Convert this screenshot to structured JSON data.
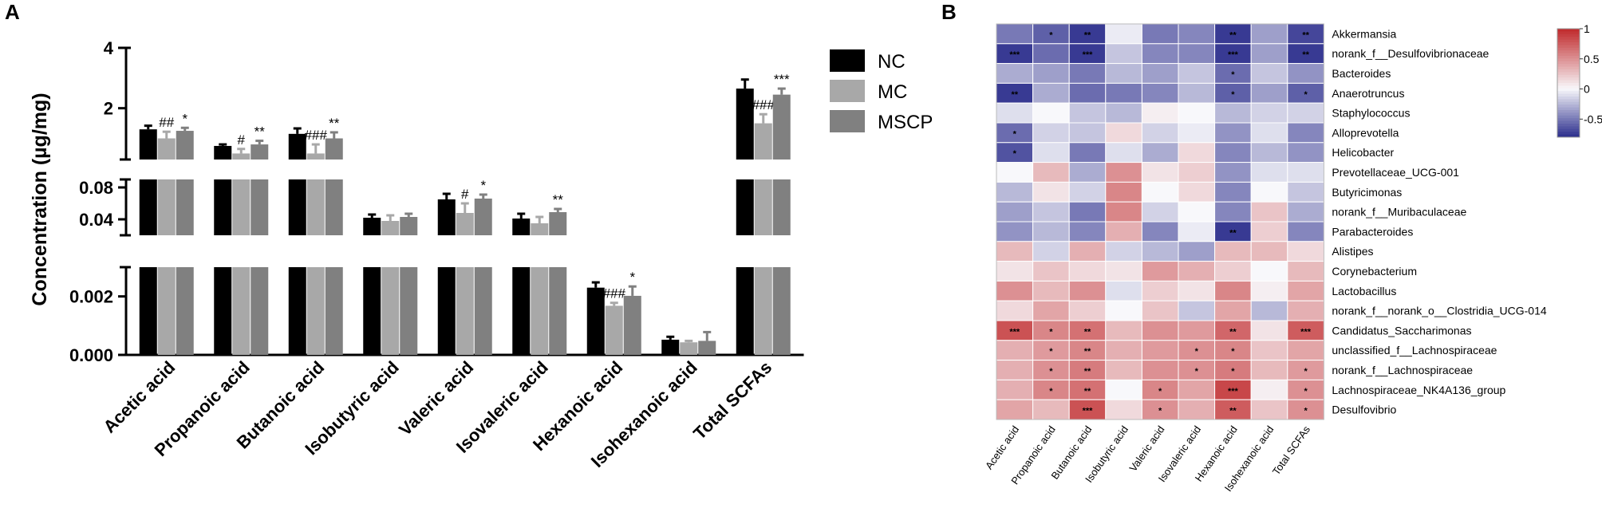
{
  "panels": {
    "a_label": "A",
    "b_label": "B"
  },
  "chart_data": [
    {
      "type": "bar",
      "panel": "A",
      "ylabel": "Concentration (µg/mg)",
      "xlabel": "",
      "broken_axis": true,
      "segments": [
        {
          "range": [
            0,
            0.003
          ],
          "ticks": [
            "0.000",
            "0.002"
          ],
          "tick_values": [
            0,
            0.002
          ]
        },
        {
          "range": [
            0.02,
            0.09
          ],
          "ticks": [
            "0.04",
            "0.08"
          ],
          "tick_values": [
            0.04,
            0.08
          ]
        },
        {
          "range": [
            0.3,
            4
          ],
          "ticks": [
            "2",
            "4"
          ],
          "tick_values": [
            2,
            4
          ]
        }
      ],
      "categories": [
        "Acetic acid",
        "Propanoic acid",
        "Butanoic acid",
        "Isobutyric acid",
        "Valeric acid",
        "Isovaleric acid",
        "Hexanoic acid",
        "Isohexanoic acid",
        "Total SCFAs"
      ],
      "category_segment": [
        2,
        2,
        2,
        1,
        1,
        1,
        0,
        0,
        2
      ],
      "series": [
        {
          "name": "NC",
          "color": "#000000",
          "values": [
            1.3,
            0.75,
            1.15,
            0.042,
            0.065,
            0.041,
            0.0023,
            0.00052,
            2.65
          ],
          "errors": [
            0.12,
            0.05,
            0.18,
            0.004,
            0.007,
            0.006,
            0.00018,
            0.0001,
            0.3
          ],
          "marks": [
            "",
            "",
            "",
            "",
            "",
            "",
            "",
            "",
            ""
          ]
        },
        {
          "name": "MC",
          "color": "#a8a8a8",
          "values": [
            1.0,
            0.5,
            0.5,
            0.038,
            0.048,
            0.035,
            0.00168,
            0.00043,
            1.5
          ],
          "errors": [
            0.22,
            0.15,
            0.3,
            0.007,
            0.012,
            0.008,
            0.0001,
            5e-05,
            0.3
          ],
          "marks": [
            "##",
            "#",
            "###",
            "",
            "#",
            "",
            "###",
            "",
            "###"
          ]
        },
        {
          "name": "MSCP",
          "color": "#808080",
          "values": [
            1.25,
            0.8,
            1.0,
            0.043,
            0.066,
            0.049,
            0.00202,
            0.00048,
            2.45
          ],
          "errors": [
            0.1,
            0.12,
            0.2,
            0.004,
            0.005,
            0.004,
            0.00032,
            0.0003,
            0.2
          ],
          "marks": [
            "*",
            "**",
            "**",
            "",
            "*",
            "**",
            "*",
            "",
            "***"
          ]
        }
      ],
      "legend": [
        "NC",
        "MC",
        "MSCP"
      ]
    },
    {
      "type": "heatmap",
      "panel": "B",
      "rows": [
        "Akkermansia",
        "norank_f__Desulfovibrionaceae",
        "Bacteroides",
        "Anaerotruncus",
        "Staphylococcus",
        "Alloprevotella",
        "Helicobacter",
        "Prevotellaceae_UCG-001",
        "Butyricimonas",
        "norank_f__Muribaculaceae",
        "Parabacteroides",
        "Alistipes",
        "Corynebacterium",
        "Lactobacillus",
        "norank_f__norank_o__Clostridia_UCG-014",
        "Candidatus_Saccharimonas",
        "unclassified_f__Lachnospiraceae",
        "norank_f__Lachnospiraceae",
        "Lachnospiraceae_NK4A136_group",
        "Desulfovibrio"
      ],
      "columns": [
        "Acetic acid",
        "Propanoic acid",
        "Butanoic acid",
        "Isobutyric acid",
        "Valeric acid",
        "Isovaleric acid",
        "Hexanoic acid",
        "Isohexanoic acid",
        "Total SCFAs"
      ],
      "values": [
        [
          -0.5,
          -0.6,
          -0.75,
          -0.05,
          -0.5,
          -0.45,
          -0.75,
          -0.35,
          -0.7
        ],
        [
          -0.75,
          -0.55,
          -0.75,
          -0.2,
          -0.45,
          -0.45,
          -0.75,
          -0.35,
          -0.75
        ],
        [
          -0.3,
          -0.35,
          -0.5,
          -0.25,
          -0.35,
          -0.2,
          -0.55,
          -0.2,
          -0.4
        ],
        [
          -0.75,
          -0.3,
          -0.55,
          -0.5,
          -0.45,
          -0.25,
          -0.6,
          -0.35,
          -0.6
        ],
        [
          -0.1,
          0.0,
          -0.2,
          -0.25,
          0.05,
          0.0,
          -0.25,
          -0.15,
          -0.15
        ],
        [
          -0.55,
          -0.15,
          -0.2,
          0.15,
          -0.15,
          -0.05,
          -0.4,
          -0.1,
          -0.45
        ],
        [
          -0.65,
          -0.1,
          -0.5,
          -0.1,
          -0.3,
          0.15,
          -0.45,
          -0.25,
          -0.4
        ],
        [
          0.0,
          0.3,
          -0.3,
          0.5,
          0.1,
          0.2,
          -0.4,
          -0.1,
          -0.1
        ],
        [
          -0.25,
          0.1,
          -0.15,
          0.55,
          0.0,
          0.15,
          -0.45,
          0.0,
          -0.2
        ],
        [
          -0.35,
          -0.2,
          -0.5,
          0.55,
          -0.15,
          0.0,
          -0.45,
          0.25,
          -0.3
        ],
        [
          -0.4,
          -0.25,
          -0.45,
          0.35,
          -0.45,
          -0.05,
          -0.75,
          0.2,
          -0.45
        ],
        [
          0.3,
          -0.15,
          0.35,
          -0.15,
          -0.25,
          -0.35,
          0.3,
          0.3,
          0.15
        ],
        [
          0.1,
          0.25,
          0.15,
          0.1,
          0.45,
          0.35,
          0.2,
          0.0,
          0.3
        ],
        [
          0.5,
          0.3,
          0.5,
          -0.1,
          0.2,
          0.1,
          0.55,
          0.05,
          0.4
        ],
        [
          0.15,
          0.4,
          0.2,
          0.0,
          0.25,
          -0.2,
          0.4,
          -0.25,
          0.35
        ],
        [
          0.8,
          0.55,
          0.65,
          0.3,
          0.5,
          0.45,
          0.7,
          0.1,
          0.75
        ],
        [
          0.35,
          0.45,
          0.55,
          0.35,
          0.45,
          0.5,
          0.55,
          0.25,
          0.4
        ],
        [
          0.35,
          0.5,
          0.6,
          0.3,
          0.5,
          0.5,
          0.6,
          0.3,
          0.45
        ],
        [
          0.35,
          0.55,
          0.65,
          0.0,
          0.55,
          0.4,
          0.85,
          0.05,
          0.5
        ],
        [
          0.4,
          0.3,
          0.8,
          0.15,
          0.5,
          0.35,
          0.75,
          0.25,
          0.5
        ]
      ],
      "stars": [
        [
          "",
          "*",
          "**",
          "",
          "",
          "",
          "**",
          "",
          "**"
        ],
        [
          "***",
          "",
          "***",
          "",
          "",
          "",
          "***",
          "",
          "**"
        ],
        [
          "",
          "",
          "",
          "",
          "",
          "",
          "*",
          "",
          ""
        ],
        [
          "**",
          "",
          "",
          "",
          "",
          "",
          "*",
          "",
          "*"
        ],
        [
          "",
          "",
          "",
          "",
          "",
          "",
          "",
          "",
          ""
        ],
        [
          "*",
          "",
          "",
          "",
          "",
          "",
          "",
          "",
          ""
        ],
        [
          "*",
          "",
          "",
          "",
          "",
          "",
          "",
          "",
          ""
        ],
        [
          "",
          "",
          "",
          "",
          "",
          "",
          "",
          "",
          ""
        ],
        [
          "",
          "",
          "",
          "",
          "",
          "",
          "",
          "",
          ""
        ],
        [
          "",
          "",
          "",
          "",
          "",
          "",
          "",
          "",
          ""
        ],
        [
          "",
          "",
          "",
          "",
          "",
          "",
          "**",
          "",
          ""
        ],
        [
          "",
          "",
          "",
          "",
          "",
          "",
          "",
          "",
          ""
        ],
        [
          "",
          "",
          "",
          "",
          "",
          "",
          "",
          "",
          ""
        ],
        [
          "",
          "",
          "",
          "",
          "",
          "",
          "",
          "",
          ""
        ],
        [
          "",
          "",
          "",
          "",
          "",
          "",
          "",
          "",
          ""
        ],
        [
          "***",
          "*",
          "**",
          "",
          "",
          "",
          "**",
          "",
          "***"
        ],
        [
          "",
          "*",
          "**",
          "",
          "",
          "*",
          "*",
          "",
          ""
        ],
        [
          "",
          "*",
          "**",
          "",
          "",
          "*",
          "*",
          "",
          "*"
        ],
        [
          "",
          "*",
          "**",
          "",
          "*",
          "",
          "***",
          "",
          "*"
        ],
        [
          "",
          "",
          "***",
          "",
          "*",
          "",
          "**",
          "",
          "*"
        ]
      ],
      "colorbar": {
        "range": [
          -0.8,
          1.0
        ],
        "ticks": [
          "1",
          "0.5",
          "0",
          "-0.5"
        ],
        "tick_values": [
          1,
          0.5,
          0,
          -0.5
        ],
        "colors": {
          "neg": "#2b2d8c",
          "mid": "#f8f8fb",
          "pos": "#c0282a"
        }
      }
    }
  ]
}
